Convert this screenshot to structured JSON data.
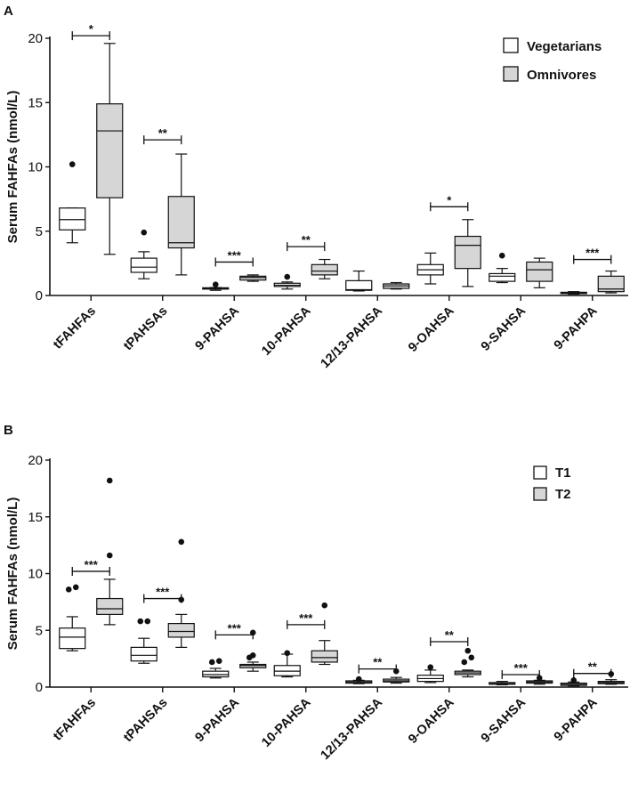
{
  "chart_data": [
    {
      "panel": "A",
      "type": "box",
      "ylabel": "Serum FAHFAs (nmol/L)",
      "ylim": [
        0,
        20
      ],
      "yticks": [
        0,
        5,
        10,
        15,
        20
      ],
      "categories": [
        "tFAHFAs",
        "tPAHSAs",
        "9-PAHSA",
        "10-PAHSA",
        "12/13-PAHSA",
        "9-OAHSA",
        "9-SAHSA",
        "9-PAHPA"
      ],
      "legend": [
        {
          "name": "Vegetarians",
          "color": "#ffffff"
        },
        {
          "name": "Omnivores",
          "color": "#d6d6d6"
        }
      ],
      "series": [
        {
          "name": "Vegetarians",
          "color": "#ffffff",
          "boxes": [
            {
              "min": 4.1,
              "q1": 5.1,
              "median": 5.9,
              "q3": 6.8,
              "max": 6.8,
              "outliers": [
                10.2
              ]
            },
            {
              "min": 1.3,
              "q1": 1.8,
              "median": 2.2,
              "q3": 2.9,
              "max": 3.4,
              "outliers": [
                4.9
              ]
            },
            {
              "min": 0.4,
              "q1": 0.5,
              "median": 0.55,
              "q3": 0.6,
              "max": 0.62,
              "outliers": [
                0.85
              ]
            },
            {
              "min": 0.5,
              "q1": 0.7,
              "median": 0.8,
              "q3": 0.95,
              "max": 1.05,
              "outliers": [
                1.45
              ]
            },
            {
              "min": 0.35,
              "q1": 0.4,
              "median": 0.45,
              "q3": 1.15,
              "max": 1.9,
              "outliers": []
            },
            {
              "min": 0.9,
              "q1": 1.6,
              "median": 2.0,
              "q3": 2.4,
              "max": 3.3,
              "outliers": []
            },
            {
              "min": 1.0,
              "q1": 1.1,
              "median": 1.5,
              "q3": 1.7,
              "max": 2.1,
              "outliers": [
                3.1
              ]
            },
            {
              "min": 0.1,
              "q1": 0.15,
              "median": 0.2,
              "q3": 0.25,
              "max": 0.3,
              "outliers": []
            }
          ]
        },
        {
          "name": "Omnivores",
          "color": "#d6d6d6",
          "boxes": [
            {
              "min": 3.2,
              "q1": 7.6,
              "median": 12.8,
              "q3": 14.9,
              "max": 19.6,
              "outliers": []
            },
            {
              "min": 1.6,
              "q1": 3.7,
              "median": 4.1,
              "q3": 7.7,
              "max": 11.0,
              "outliers": []
            },
            {
              "min": 1.1,
              "q1": 1.2,
              "median": 1.4,
              "q3": 1.5,
              "max": 1.6,
              "outliers": []
            },
            {
              "min": 1.3,
              "q1": 1.6,
              "median": 1.9,
              "q3": 2.4,
              "max": 2.8,
              "outliers": []
            },
            {
              "min": 0.5,
              "q1": 0.55,
              "median": 0.75,
              "q3": 0.9,
              "max": 1.0,
              "outliers": []
            },
            {
              "min": 0.7,
              "q1": 2.1,
              "median": 3.9,
              "q3": 4.6,
              "max": 5.9,
              "outliers": []
            },
            {
              "min": 0.6,
              "q1": 1.1,
              "median": 2.0,
              "q3": 2.6,
              "max": 2.9,
              "outliers": []
            },
            {
              "min": 0.2,
              "q1": 0.3,
              "median": 0.5,
              "q3": 1.5,
              "max": 1.9,
              "outliers": []
            }
          ]
        }
      ],
      "significance": [
        {
          "index": 0,
          "label": "*",
          "y": 20.2
        },
        {
          "index": 1,
          "label": "**",
          "y": 12.1
        },
        {
          "index": 2,
          "label": "***",
          "y": 2.6
        },
        {
          "index": 3,
          "label": "**",
          "y": 3.8
        },
        {
          "index": 5,
          "label": "*",
          "y": 6.9
        },
        {
          "index": 7,
          "label": "***",
          "y": 2.8
        }
      ]
    },
    {
      "panel": "B",
      "type": "box",
      "ylabel": "Serum FAHFAs (nmol/L)",
      "ylim": [
        0,
        20
      ],
      "yticks": [
        0,
        5,
        10,
        15,
        20
      ],
      "categories": [
        "tFAHFAs",
        "tPAHSAs",
        "9-PAHSA",
        "10-PAHSA",
        "12/13-PAHSA",
        "9-OAHSA",
        "9-SAHSA",
        "9-PAHPA"
      ],
      "legend": [
        {
          "name": "T1",
          "color": "#ffffff"
        },
        {
          "name": "T2",
          "color": "#d6d6d6"
        }
      ],
      "series": [
        {
          "name": "T1",
          "color": "#ffffff",
          "boxes": [
            {
              "min": 3.2,
              "q1": 3.4,
              "median": 4.4,
              "q3": 5.2,
              "max": 6.2,
              "outliers": [
                8.6,
                8.8
              ]
            },
            {
              "min": 2.1,
              "q1": 2.3,
              "median": 2.8,
              "q3": 3.5,
              "max": 4.3,
              "outliers": [
                5.8,
                5.8
              ]
            },
            {
              "min": 0.8,
              "q1": 0.9,
              "median": 1.1,
              "q3": 1.4,
              "max": 1.65,
              "outliers": [
                2.2,
                2.3
              ]
            },
            {
              "min": 0.9,
              "q1": 1.0,
              "median": 1.4,
              "q3": 1.9,
              "max": 2.9,
              "outliers": [
                3.0
              ]
            },
            {
              "min": 0.3,
              "q1": 0.35,
              "median": 0.45,
              "q3": 0.55,
              "max": 0.6,
              "outliers": [
                0.7
              ]
            },
            {
              "min": 0.4,
              "q1": 0.5,
              "median": 0.75,
              "q3": 1.05,
              "max": 1.5,
              "outliers": [
                1.75
              ]
            },
            {
              "min": 0.2,
              "q1": 0.25,
              "median": 0.3,
              "q3": 0.4,
              "max": 0.5,
              "outliers": []
            },
            {
              "min": 0.1,
              "q1": 0.15,
              "median": 0.25,
              "q3": 0.35,
              "max": 0.45,
              "outliers": [
                0.6
              ]
            }
          ]
        },
        {
          "name": "T2",
          "color": "#d6d6d6",
          "boxes": [
            {
              "min": 5.5,
              "q1": 6.4,
              "median": 6.9,
              "q3": 7.8,
              "max": 9.5,
              "outliers": [
                11.6,
                18.2
              ]
            },
            {
              "min": 3.5,
              "q1": 4.4,
              "median": 4.9,
              "q3": 5.6,
              "max": 6.4,
              "outliers": [
                7.7,
                12.8
              ]
            },
            {
              "min": 1.4,
              "q1": 1.7,
              "median": 1.9,
              "q3": 2.0,
              "max": 2.2,
              "outliers": [
                2.6,
                2.8,
                4.8
              ]
            },
            {
              "min": 2.0,
              "q1": 2.2,
              "median": 2.6,
              "q3": 3.2,
              "max": 4.1,
              "outliers": [
                7.2
              ]
            },
            {
              "min": 0.35,
              "q1": 0.45,
              "median": 0.55,
              "q3": 0.7,
              "max": 0.85,
              "outliers": [
                1.4
              ]
            },
            {
              "min": 0.9,
              "q1": 1.1,
              "median": 1.25,
              "q3": 1.4,
              "max": 1.5,
              "outliers": [
                2.2,
                2.6,
                3.2
              ]
            },
            {
              "min": 0.25,
              "q1": 0.35,
              "median": 0.45,
              "q3": 0.55,
              "max": 0.6,
              "outliers": [
                0.8
              ]
            },
            {
              "min": 0.25,
              "q1": 0.3,
              "median": 0.4,
              "q3": 0.5,
              "max": 0.65,
              "outliers": [
                1.15
              ]
            }
          ]
        }
      ],
      "significance": [
        {
          "index": 0,
          "label": "***",
          "y": 10.2
        },
        {
          "index": 1,
          "label": "***",
          "y": 7.8
        },
        {
          "index": 2,
          "label": "***",
          "y": 4.6
        },
        {
          "index": 3,
          "label": "***",
          "y": 5.5
        },
        {
          "index": 4,
          "label": "**",
          "y": 1.6
        },
        {
          "index": 5,
          "label": "**",
          "y": 4.0
        },
        {
          "index": 6,
          "label": "***",
          "y": 1.1
        },
        {
          "index": 7,
          "label": "**",
          "y": 1.2
        }
      ]
    }
  ]
}
